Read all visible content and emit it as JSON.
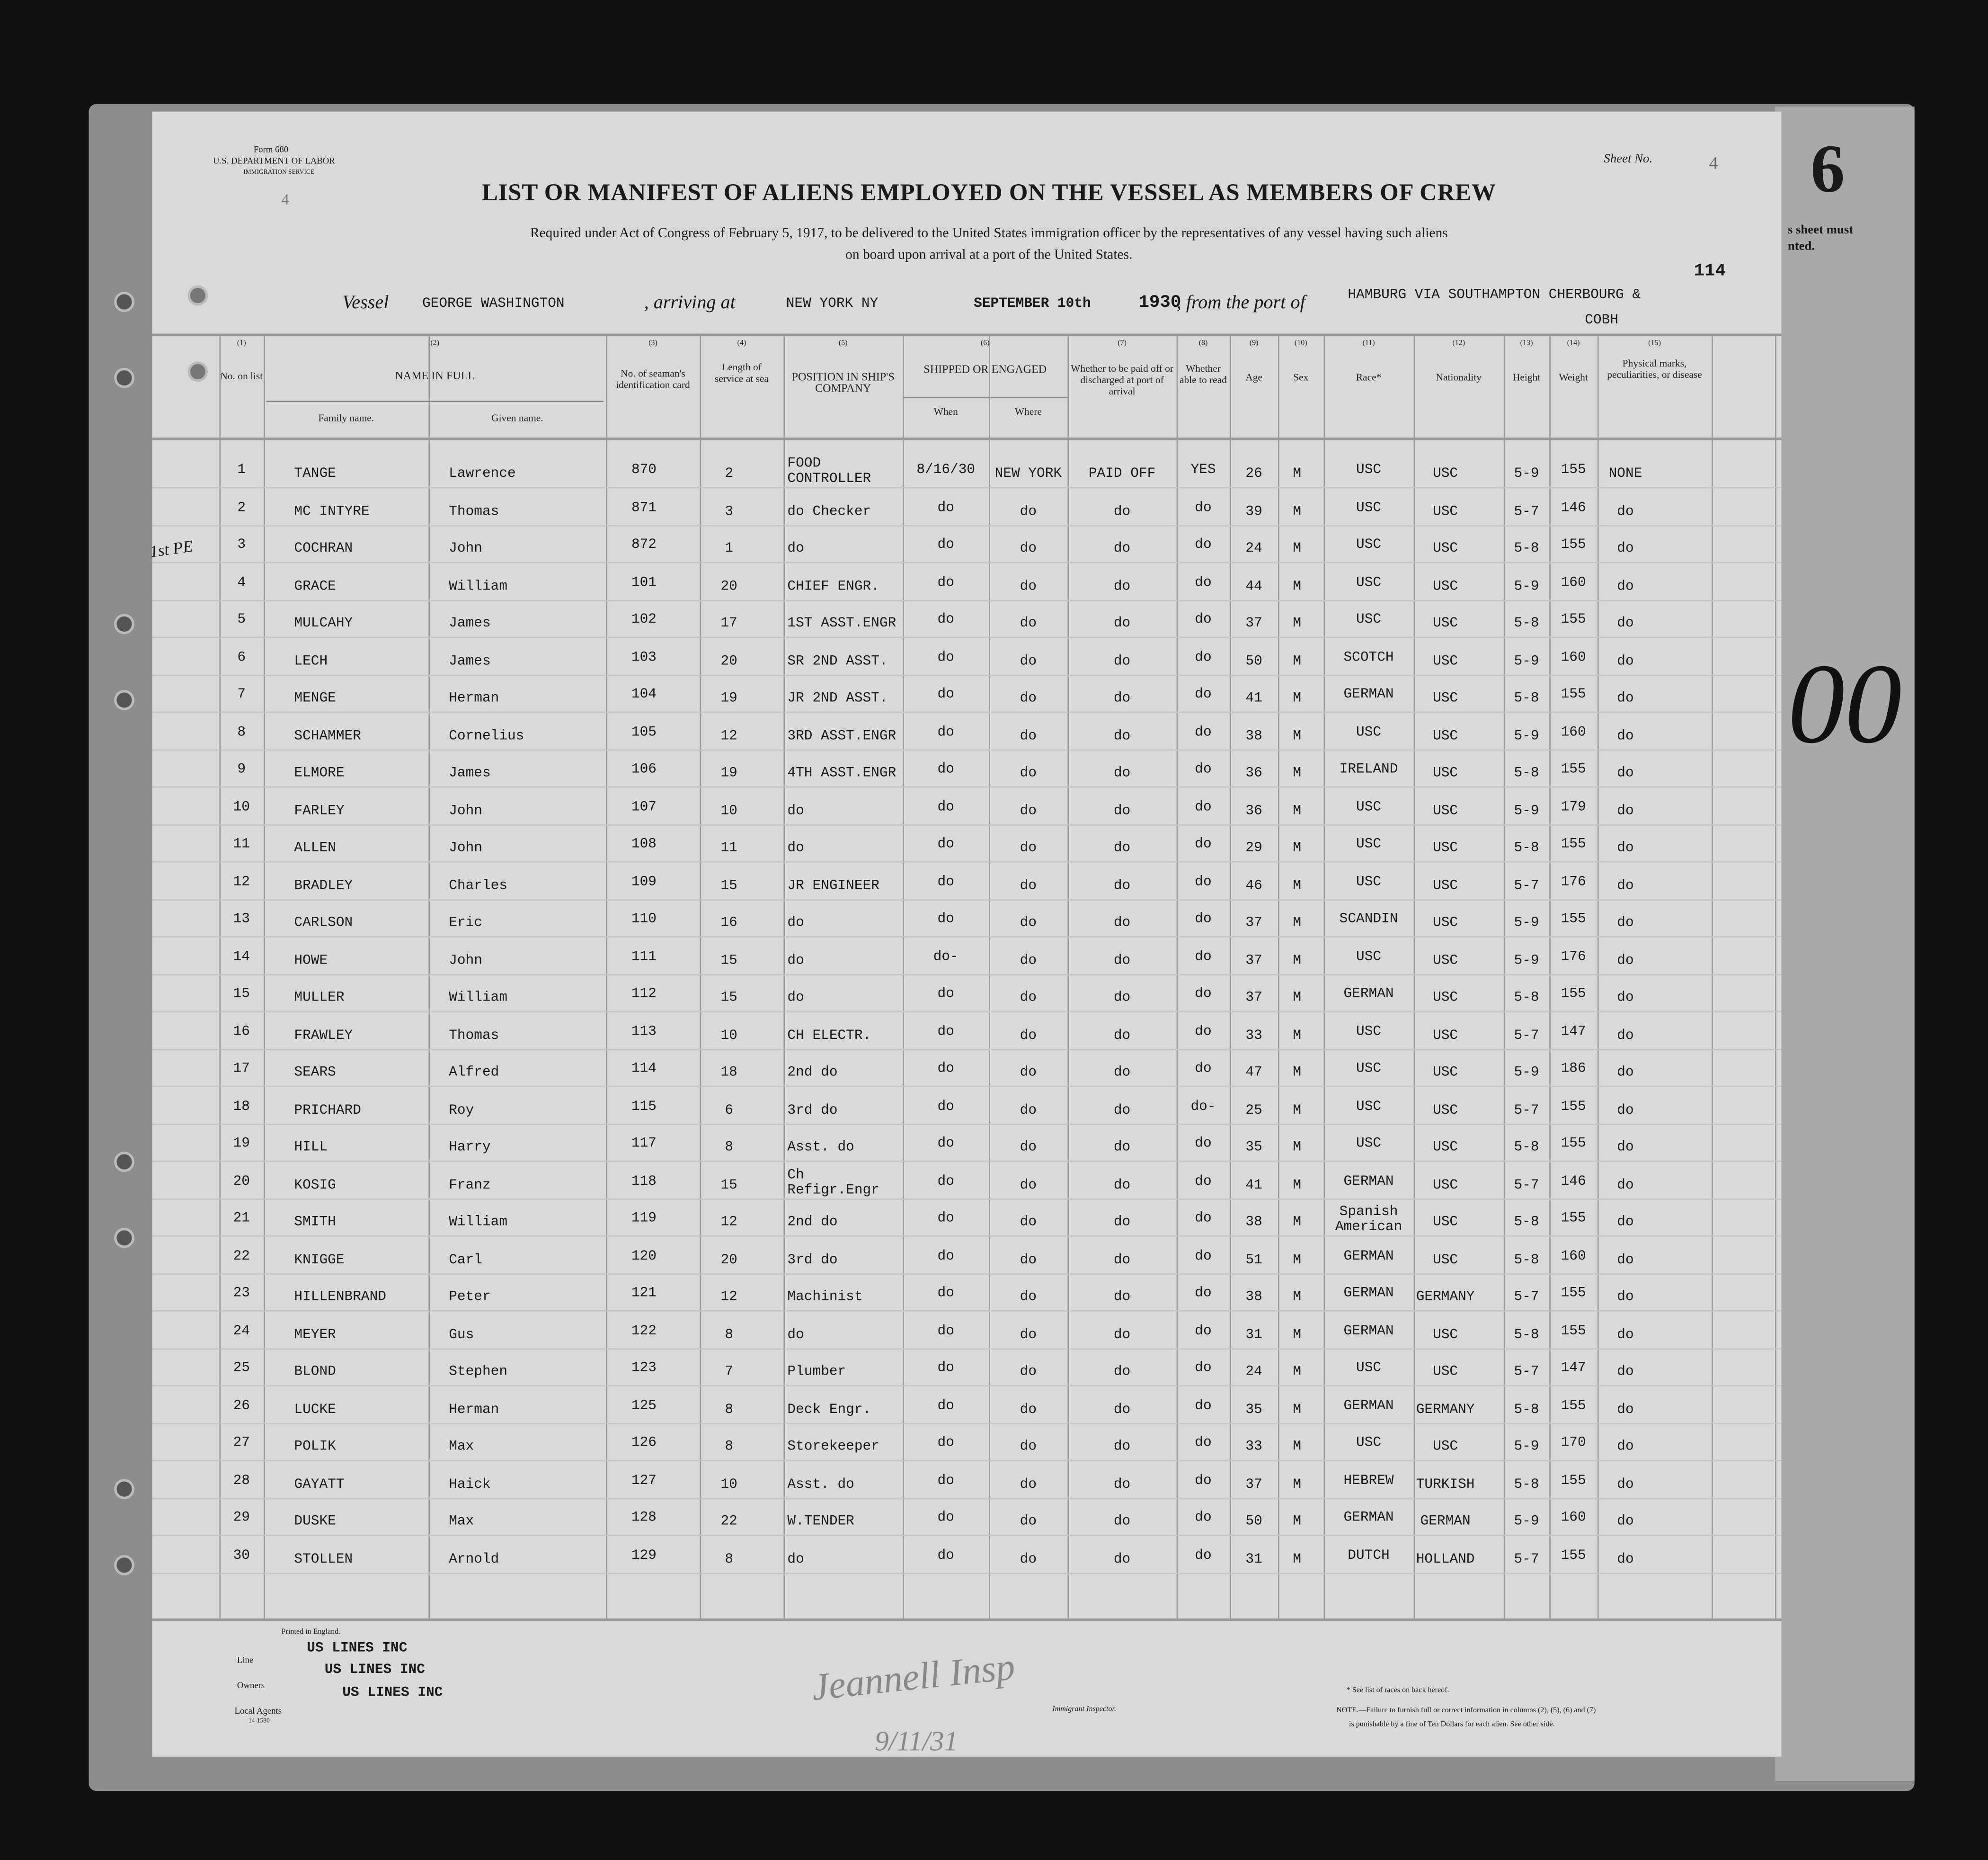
{
  "form": {
    "form_no": "Form 680",
    "department": "U.S. DEPARTMENT OF LABOR",
    "service": "IMMIGRATION SERVICE",
    "left_number": "4",
    "sheet_label": "Sheet No.",
    "sheet_no": "4",
    "title": "LIST OR MANIFEST OF ALIENS EMPLOYED ON THE VESSEL AS MEMBERS OF CREW",
    "subtitle_1": "Required under Act of Congress of February 5, 1917, to be delivered to the United States immigration officer by the representatives of any vessel having such aliens",
    "subtitle_2": "on board upon arrival at a port of the United States.",
    "stamp_number": "114",
    "right_page_number": "6",
    "right_page_text_1": "s sheet must",
    "right_page_text_2": "nted.",
    "margin_note": "1st PE"
  },
  "voyage": {
    "vessel_label": "Vessel",
    "vessel": "GEORGE WASHINGTON",
    "arriving_label": ", arriving at",
    "arriving": "NEW YORK NY",
    "date": "SEPTEMBER 10th",
    "year": "1930",
    "from_label": ", from the port of",
    "port": "HAMBURG VIA SOUTHAMPTON CHERBOURG &",
    "port_2": "COBH"
  },
  "columns": {
    "nums": [
      "(1)",
      "(2)",
      "(3)",
      "(4)",
      "(5)",
      "(6)",
      "(7)",
      "(8)",
      "(9)",
      "(10)",
      "(11)",
      "(12)",
      "(13)",
      "(14)",
      "(15)"
    ],
    "no": "No. on list",
    "name": "NAME IN FULL",
    "family": "Family name.",
    "given": "Given name.",
    "id": "No. of seaman's identification card",
    "length": "Length of service at sea",
    "position": "POSITION IN SHIP'S COMPANY",
    "shipped": "SHIPPED OR ENGAGED",
    "when": "When",
    "where": "Where",
    "paid": "Whether to be paid off or discharged at port of arrival",
    "read": "Whether able to read",
    "age": "Age",
    "sex": "Sex",
    "race": "Race*",
    "nationality": "Nationality",
    "height": "Height",
    "weight": "Weight",
    "marks": "Physical marks, peculiarities, or disease"
  },
  "rows": [
    [
      "1",
      "TANGE",
      "Lawrence",
      "870",
      "2",
      "FOOD CONTROLLER",
      "8/16/30",
      "NEW YORK",
      "PAID OFF",
      "YES",
      "26",
      "M",
      "USC",
      "USC",
      "5-9",
      "155",
      "NONE"
    ],
    [
      "2",
      "MC INTYRE",
      "Thomas",
      "871",
      "3",
      "do Checker",
      "do",
      "do",
      "do",
      "do",
      "39",
      "M",
      "USC",
      "USC",
      "5-7",
      "146",
      "do"
    ],
    [
      "3",
      "COCHRAN",
      "John",
      "872",
      "1",
      "do",
      "do",
      "do",
      "do",
      "do",
      "24",
      "M",
      "USC",
      "USC",
      "5-8",
      "155",
      "do"
    ],
    [
      "4",
      "GRACE",
      "William",
      "101",
      "20",
      "CHIEF ENGR.",
      "do",
      "do",
      "do",
      "do",
      "44",
      "M",
      "USC",
      "USC",
      "5-9",
      "160",
      "do"
    ],
    [
      "5",
      "MULCAHY",
      "James",
      "102",
      "17",
      "1ST ASST.ENGR",
      "do",
      "do",
      "do",
      "do",
      "37",
      "M",
      "USC",
      "USC",
      "5-8",
      "155",
      "do"
    ],
    [
      "6",
      "LECH",
      "James",
      "103",
      "20",
      "SR 2ND ASST.",
      "do",
      "do",
      "do",
      "do",
      "50",
      "M",
      "SCOTCH",
      "USC",
      "5-9",
      "160",
      "do"
    ],
    [
      "7",
      "MENGE",
      "Herman",
      "104",
      "19",
      "JR 2ND ASST.",
      "do",
      "do",
      "do",
      "do",
      "41",
      "M",
      "GERMAN",
      "USC",
      "5-8",
      "155",
      "do"
    ],
    [
      "8",
      "SCHAMMER",
      "Cornelius",
      "105",
      "12",
      "3RD ASST.ENGR",
      "do",
      "do",
      "do",
      "do",
      "38",
      "M",
      "USC",
      "USC",
      "5-9",
      "160",
      "do"
    ],
    [
      "9",
      "ELMORE",
      "James",
      "106",
      "19",
      "4TH ASST.ENGR",
      "do",
      "do",
      "do",
      "do",
      "36",
      "M",
      "IRELAND",
      "USC",
      "5-8",
      "155",
      "do"
    ],
    [
      "10",
      "FARLEY",
      "John",
      "107",
      "10",
      "do",
      "do",
      "do",
      "do",
      "do",
      "36",
      "M",
      "USC",
      "USC",
      "5-9",
      "179",
      "do"
    ],
    [
      "11",
      "ALLEN",
      "John",
      "108",
      "11",
      "do",
      "do",
      "do",
      "do",
      "do",
      "29",
      "M",
      "USC",
      "USC",
      "5-8",
      "155",
      "do"
    ],
    [
      "12",
      "BRADLEY",
      "Charles",
      "109",
      "15",
      "JR ENGINEER",
      "do",
      "do",
      "do",
      "do",
      "46",
      "M",
      "USC",
      "USC",
      "5-7",
      "176",
      "do"
    ],
    [
      "13",
      "CARLSON",
      "Eric",
      "110",
      "16",
      "do",
      "do",
      "do",
      "do",
      "do",
      "37",
      "M",
      "SCANDIN",
      "USC",
      "5-9",
      "155",
      "do"
    ],
    [
      "14",
      "HOWE",
      "John",
      "111",
      "15",
      "do",
      "do-",
      "do",
      "do",
      "do",
      "37",
      "M",
      "USC",
      "USC",
      "5-9",
      "176",
      "do"
    ],
    [
      "15",
      "MULLER",
      "William",
      "112",
      "15",
      "do",
      "do",
      "do",
      "do",
      "do",
      "37",
      "M",
      "GERMAN",
      "USC",
      "5-8",
      "155",
      "do"
    ],
    [
      "16",
      "FRAWLEY",
      "Thomas",
      "113",
      "10",
      "CH ELECTR.",
      "do",
      "do",
      "do",
      "do",
      "33",
      "M",
      "USC",
      "USC",
      "5-7",
      "147",
      "do"
    ],
    [
      "17",
      "SEARS",
      "Alfred",
      "114",
      "18",
      "2nd do",
      "do",
      "do",
      "do",
      "do",
      "47",
      "M",
      "USC",
      "USC",
      "5-9",
      "186",
      "do"
    ],
    [
      "18",
      "PRICHARD",
      "Roy",
      "115",
      "6",
      "3rd do",
      "do",
      "do",
      "do",
      "do-",
      "25",
      "M",
      "USC",
      "USC",
      "5-7",
      "155",
      "do"
    ],
    [
      "19",
      "HILL",
      "Harry",
      "117",
      "8",
      "Asst. do",
      "do",
      "do",
      "do",
      "do",
      "35",
      "M",
      "USC",
      "USC",
      "5-8",
      "155",
      "do"
    ],
    [
      "20",
      "KOSIG",
      "Franz",
      "118",
      "15",
      "Ch Refigr.Engr",
      "do",
      "do",
      "do",
      "do",
      "41",
      "M",
      "GERMAN",
      "USC",
      "5-7",
      "146",
      "do"
    ],
    [
      "21",
      "SMITH",
      "William",
      "119",
      "12",
      "2nd do",
      "do",
      "do",
      "do",
      "do",
      "38",
      "M",
      "Spanish American",
      "USC",
      "5-8",
      "155",
      "do"
    ],
    [
      "22",
      "KNIGGE",
      "Carl",
      "120",
      "20",
      "3rd do",
      "do",
      "do",
      "do",
      "do",
      "51",
      "M",
      "GERMAN",
      "USC",
      "5-8",
      "160",
      "do"
    ],
    [
      "23",
      "HILLENBRAND",
      "Peter",
      "121",
      "12",
      "Machinist",
      "do",
      "do",
      "do",
      "do",
      "38",
      "M",
      "GERMAN",
      "GERMANY",
      "5-7",
      "155",
      "do"
    ],
    [
      "24",
      "MEYER",
      "Gus",
      "122",
      "8",
      "do",
      "do",
      "do",
      "do",
      "do",
      "31",
      "M",
      "GERMAN",
      "USC",
      "5-8",
      "155",
      "do"
    ],
    [
      "25",
      "BLOND",
      "Stephen",
      "123",
      "7",
      "Plumber",
      "do",
      "do",
      "do",
      "do",
      "24",
      "M",
      "USC",
      "USC",
      "5-7",
      "147",
      "do"
    ],
    [
      "26",
      "LUCKE",
      "Herman",
      "125",
      "8",
      "Deck Engr.",
      "do",
      "do",
      "do",
      "do",
      "35",
      "M",
      "GERMAN",
      "GERMANY",
      "5-8",
      "155",
      "do"
    ],
    [
      "27",
      "POLIK",
      "Max",
      "126",
      "8",
      "Storekeeper",
      "do",
      "do",
      "do",
      "do",
      "33",
      "M",
      "USC",
      "USC",
      "5-9",
      "170",
      "do"
    ],
    [
      "28",
      "GAYATT",
      "Haick",
      "127",
      "10",
      "Asst. do",
      "do",
      "do",
      "do",
      "do",
      "37",
      "M",
      "HEBREW",
      "TURKISH",
      "5-8",
      "155",
      "do"
    ],
    [
      "29",
      "DUSKE",
      "Max",
      "128",
      "22",
      "W.TENDER",
      "do",
      "do",
      "do",
      "do",
      "50",
      "M",
      "GERMAN",
      "GERMAN",
      "5-9",
      "160",
      "do"
    ],
    [
      "30",
      "STOLLEN",
      "Arnold",
      "129",
      "8",
      "do",
      "do",
      "do",
      "do",
      "do",
      "31",
      "M",
      "DUTCH",
      "HOLLAND",
      "5-7",
      "155",
      "do"
    ]
  ],
  "footer": {
    "printed": "Printed in England.",
    "line_label": "Line",
    "line": "US LINES INC",
    "owners_label": "Owners",
    "owners": "US LINES INC",
    "agents_label": "Local Agents",
    "agents": "US LINES INC",
    "form_code": "14-1580",
    "inspector_label": "Immigrant Inspector.",
    "signature_date": "9/11/31",
    "races_note": "* See list of races on back hereof.",
    "note_1": "NOTE.—Failure to furnish full or correct information in columns (2), (5), (6) and (7)",
    "note_2": "is punishable by a fine of Ten Dollars for each alien. See other side."
  },
  "colors": {
    "background": "#111111",
    "paper": "#d9d9d9",
    "ink": "#1a1a1a"
  }
}
